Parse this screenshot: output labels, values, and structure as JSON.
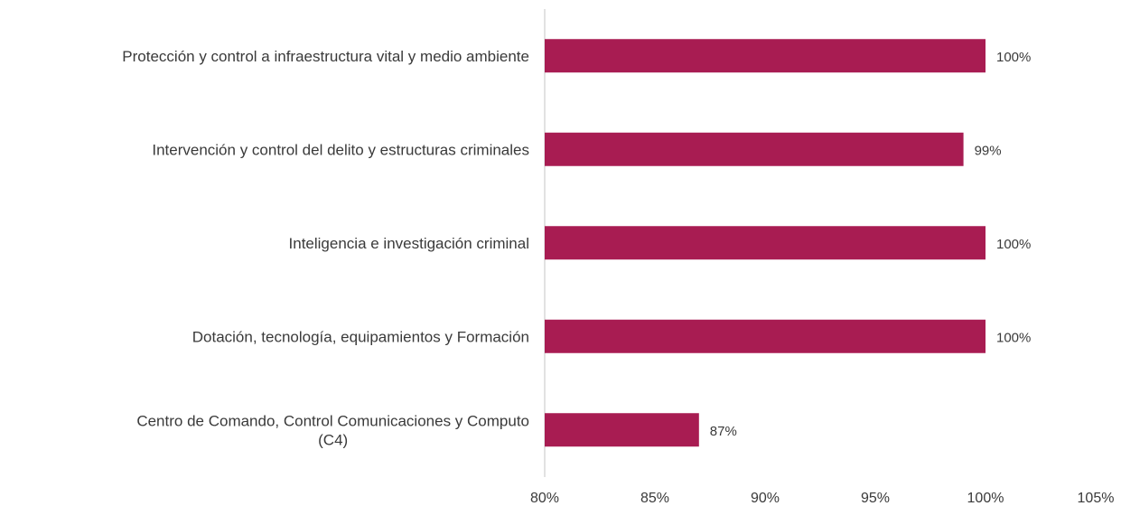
{
  "chart_data": {
    "type": "bar",
    "orientation": "horizontal",
    "categories": [
      [
        "Protección y control a  infraestructura vital y medio ambiente"
      ],
      [
        "Intervención y control del delito y estructuras criminales"
      ],
      [
        "Inteligencia e investigación criminal"
      ],
      [
        "Dotación, tecnología, equipamientos y Formación"
      ],
      [
        "Centro de Comando, Control Comunicaciones y Computo",
        "(C4)"
      ]
    ],
    "values": [
      100,
      99,
      100,
      100,
      87
    ],
    "data_labels": [
      "100%",
      "99%",
      "100%",
      "100%",
      "87%"
    ],
    "xlim": [
      80,
      105
    ],
    "x_ticks": [
      80,
      85,
      90,
      95,
      100,
      105
    ],
    "x_tick_labels": [
      "80%",
      "85%",
      "90%",
      "95%",
      "100%",
      "105%"
    ],
    "grid": false,
    "colors": {
      "bar": "#a81c52",
      "axis": "#d9d9d9"
    }
  }
}
